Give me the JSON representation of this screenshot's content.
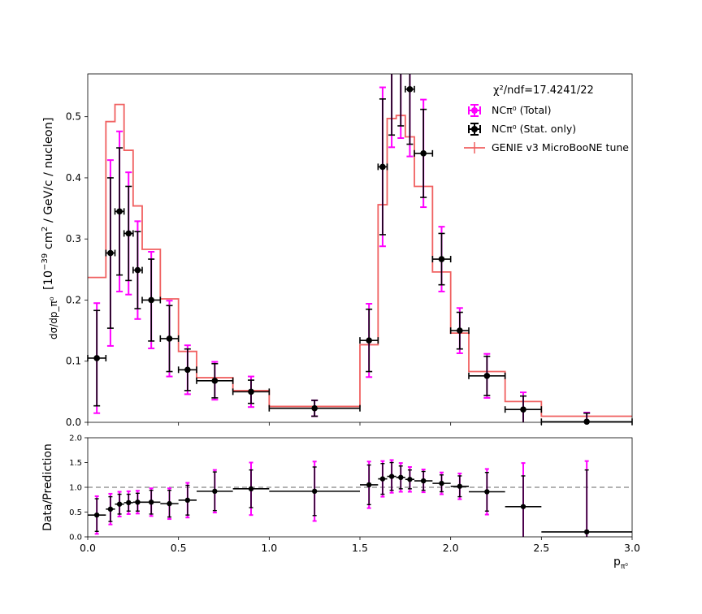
{
  "chart_data": [
    {
      "type": "scatter",
      "panel": "cross-section",
      "ylabel_frac": "dσ/dp_π⁰",
      "ylabel_units": "[10⁻³⁹ cm² / GeV/c / nucleon]",
      "ylabel_text": "[10",
      "ylabel_exp": "−39",
      "ylabel_text2": " cm",
      "ylabel_exp2": "2",
      "ylabel_text3": " / GeV/c / nucleon]",
      "ylim": [
        0,
        0.57
      ],
      "xlim": [
        0,
        3.0
      ],
      "yticks": [
        "0.0",
        "0.1",
        "0.2",
        "0.3",
        "0.4",
        "0.5"
      ],
      "annotation": "χ²/ndf=17.4241/22",
      "legend": {
        "position": "top-right",
        "entries": [
          {
            "label": "NCπ⁰ (Total)",
            "color": "#ff00ff"
          },
          {
            "label": "NCπ⁰ (Stat. only)",
            "color": "#000000"
          },
          {
            "label": "GENIE v3 MicroBooNE tune",
            "color": "#f06060"
          }
        ]
      },
      "prediction": {
        "name": "GENIE v3 MicroBooNE tune",
        "color": "#f06060",
        "bin_edges": [
          0,
          0.1,
          0.15,
          0.2,
          0.25,
          0.3,
          0.4,
          0.5,
          0.6,
          0.8,
          1.0,
          1.5,
          1.6,
          1.65,
          1.7,
          1.75,
          1.8,
          1.9,
          2.0,
          2.1,
          2.3,
          2.5,
          3.0
        ],
        "values": [
          0.237,
          0.492,
          0.52,
          0.445,
          0.354,
          0.283,
          0.202,
          0.116,
          0.073,
          0.052,
          0.026,
          0.127,
          0.356,
          0.497,
          0.502,
          0.467,
          0.386,
          0.246,
          0.146,
          0.083,
          0.034,
          0.01
        ]
      },
      "data": {
        "x": [
          0.05,
          0.125,
          0.175,
          0.225,
          0.275,
          0.35,
          0.45,
          0.55,
          0.7,
          0.9,
          1.25,
          1.55,
          1.625,
          1.675,
          1.725,
          1.775,
          1.85,
          1.95,
          2.05,
          2.2,
          2.4,
          2.75
        ],
        "xerr": [
          0.05,
          0.025,
          0.025,
          0.025,
          0.025,
          0.05,
          0.05,
          0.05,
          0.1,
          0.1,
          0.25,
          0.05,
          0.025,
          0.025,
          0.025,
          0.025,
          0.05,
          0.05,
          0.05,
          0.1,
          0.1,
          0.25
        ],
        "y": [
          0.105,
          0.277,
          0.345,
          0.309,
          0.249,
          0.2,
          0.137,
          0.086,
          0.068,
          0.05,
          0.023,
          0.134,
          0.418,
          0.61,
          0.6,
          0.545,
          0.44,
          0.267,
          0.15,
          0.076,
          0.021,
          0.001
        ],
        "stat_err": [
          0.078,
          0.123,
          0.104,
          0.077,
          0.063,
          0.067,
          0.054,
          0.034,
          0.028,
          0.019,
          0.013,
          0.051,
          0.111,
          0.14,
          0.115,
          0.09,
          0.072,
          0.042,
          0.03,
          0.032,
          0.022,
          0.014
        ],
        "tot_err": [
          0.09,
          0.152,
          0.131,
          0.1,
          0.08,
          0.079,
          0.062,
          0.04,
          0.031,
          0.025,
          0.013,
          0.06,
          0.13,
          0.16,
          0.135,
          0.11,
          0.088,
          0.053,
          0.037,
          0.036,
          0.028,
          0.015
        ]
      }
    },
    {
      "type": "scatter",
      "panel": "ratio",
      "ylabel": "Data/Prediction",
      "xlabel": "p",
      "xlabel_sub": "π⁰",
      "ylim": [
        0,
        2.0
      ],
      "xlim": [
        0,
        3.0
      ],
      "yticks": [
        "0.0",
        "0.5",
        "1.0",
        "1.5",
        "2.0"
      ],
      "xticks": [
        "0.0",
        "0.5",
        "1.0",
        "1.5",
        "2.0",
        "2.5",
        "3.0"
      ],
      "reference_line": 1.0,
      "data": {
        "y": [
          0.44,
          0.56,
          0.66,
          0.69,
          0.7,
          0.7,
          0.67,
          0.74,
          0.92,
          0.97,
          0.92,
          1.05,
          1.17,
          1.22,
          1.2,
          1.16,
          1.13,
          1.08,
          1.02,
          0.91,
          0.61,
          0.1
        ],
        "stat_err": [
          0.33,
          0.25,
          0.2,
          0.17,
          0.18,
          0.24,
          0.27,
          0.3,
          0.39,
          0.38,
          0.49,
          0.4,
          0.31,
          0.28,
          0.23,
          0.19,
          0.19,
          0.17,
          0.21,
          0.39,
          0.62,
          1.25
        ],
        "tot_err": [
          0.38,
          0.31,
          0.25,
          0.23,
          0.23,
          0.28,
          0.31,
          0.35,
          0.43,
          0.53,
          0.6,
          0.47,
          0.36,
          0.33,
          0.29,
          0.25,
          0.23,
          0.22,
          0.26,
          0.46,
          0.88,
          1.43
        ]
      }
    }
  ]
}
